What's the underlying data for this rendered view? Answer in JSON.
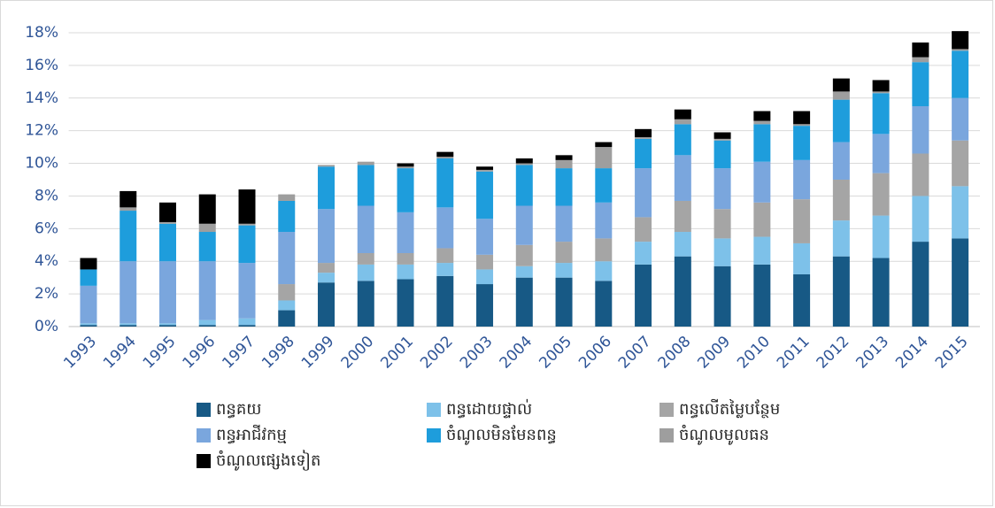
{
  "chart_data": {
    "type": "stacked_bar",
    "categories": [
      "1993",
      "1994",
      "1995",
      "1996",
      "1997",
      "1998",
      "1999",
      "2000",
      "2001",
      "2002",
      "2003",
      "2004",
      "2005",
      "2006",
      "2007",
      "2008",
      "2009",
      "2010",
      "2011",
      "2012",
      "2013",
      "2014",
      "2015"
    ],
    "series": [
      {
        "name": "ពន្ធគយ",
        "color": "#175985",
        "values": [
          0.1,
          0.1,
          0.1,
          0.1,
          0.1,
          1.0,
          2.7,
          2.8,
          2.9,
          3.1,
          2.6,
          3.0,
          3.0,
          2.8,
          3.8,
          4.3,
          3.7,
          3.8,
          3.2,
          4.3,
          4.2,
          5.2,
          5.4
        ]
      },
      {
        "name": "ពន្ធដោយផ្ទាល់",
        "color": "#7dc1e9",
        "values": [
          0.1,
          0.1,
          0.1,
          0.3,
          0.4,
          0.6,
          0.6,
          1.0,
          0.9,
          0.8,
          0.9,
          0.7,
          0.9,
          1.2,
          1.4,
          1.5,
          1.7,
          1.7,
          1.9,
          2.2,
          2.6,
          2.8,
          3.2
        ]
      },
      {
        "name": "ពន្ធលើតម្លៃបន្ថែម",
        "color": "#a5a5a5",
        "values": [
          0,
          0,
          0,
          0,
          0,
          1.0,
          0.6,
          0.7,
          0.7,
          0.9,
          0.9,
          1.3,
          1.3,
          1.4,
          1.5,
          1.9,
          1.8,
          2.1,
          2.7,
          2.5,
          2.6,
          2.6,
          2.8
        ]
      },
      {
        "name": "ពន្ធអាជីវកម្ម",
        "color": "#7aa6dd",
        "values": [
          2.3,
          3.8,
          3.8,
          3.6,
          3.4,
          3.2,
          3.3,
          2.9,
          2.5,
          2.5,
          2.2,
          2.4,
          2.2,
          2.2,
          3.0,
          2.8,
          2.5,
          2.5,
          2.4,
          2.3,
          2.4,
          2.9,
          2.6
        ]
      },
      {
        "name": "ចំណូលមិនមែនពន្ធ",
        "color": "#1e9ddc",
        "values": [
          1.0,
          3.1,
          2.3,
          1.8,
          2.3,
          1.9,
          2.6,
          2.5,
          2.7,
          3.0,
          2.9,
          2.5,
          2.3,
          2.1,
          1.8,
          1.9,
          1.7,
          2.3,
          2.1,
          2.6,
          2.5,
          2.7,
          2.9
        ]
      },
      {
        "name": "ចំណូលមូលធន",
        "color": "#9e9e9e",
        "values": [
          0,
          0.2,
          0.1,
          0.5,
          0.1,
          0.4,
          0.1,
          0.2,
          0.1,
          0.1,
          0.1,
          0.1,
          0.5,
          1.3,
          0.1,
          0.3,
          0.1,
          0.2,
          0.1,
          0.5,
          0.1,
          0.3,
          0.1
        ]
      },
      {
        "name": "ចំណូលផ្សេងទៀត",
        "color": "#000000",
        "values": [
          0.7,
          1.0,
          1.2,
          1.8,
          2.1,
          0,
          0,
          0,
          0.2,
          0.3,
          0.2,
          0.3,
          0.3,
          0.3,
          0.5,
          0.6,
          0.4,
          0.6,
          0.8,
          0.8,
          0.7,
          0.9,
          1.1
        ]
      }
    ],
    "ylim": [
      0,
      18
    ],
    "yticks": [
      {
        "value": 0,
        "label": "0%"
      },
      {
        "value": 2,
        "label": "2%"
      },
      {
        "value": 4,
        "label": "4%"
      },
      {
        "value": 6,
        "label": "6%"
      },
      {
        "value": 8,
        "label": "8%"
      },
      {
        "value": 10,
        "label": "10%"
      },
      {
        "value": 12,
        "label": "12%"
      },
      {
        "value": 14,
        "label": "14%"
      },
      {
        "value": 16,
        "label": "16%"
      },
      {
        "value": 18,
        "label": "18%"
      }
    ],
    "grid": true
  }
}
